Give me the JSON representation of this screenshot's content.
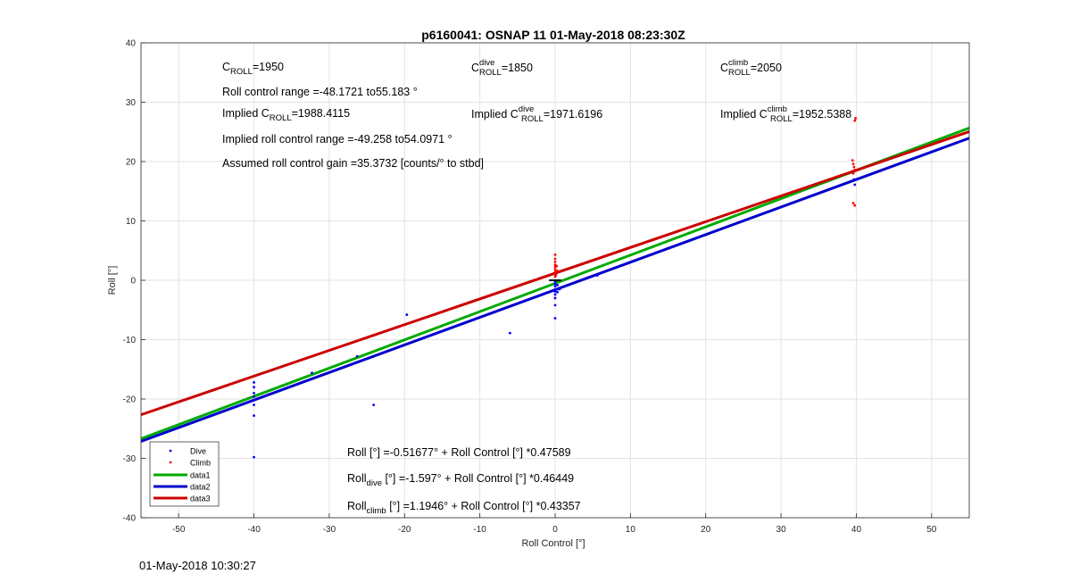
{
  "footer_timestamp": "01-May-2018 10:30:27",
  "chart_data": {
    "type": "scatter",
    "title": "p6160041: OSNAP 11 01-May-2018 08:23:30Z",
    "xlabel": "Roll Control [°]",
    "ylabel": "Roll [°]",
    "xlim": [
      -55,
      55
    ],
    "ylim": [
      -40,
      40
    ],
    "xticks": [
      -50,
      -40,
      -30,
      -20,
      -10,
      0,
      10,
      20,
      30,
      40,
      50
    ],
    "yticks": [
      -40,
      -30,
      -20,
      -10,
      0,
      10,
      20,
      30,
      40
    ],
    "grid": true,
    "legend_position": "bottom-left",
    "annotations": {
      "c_roll_base": "C",
      "c_roll_sub": "ROLL",
      "c_roll_value": "=1950",
      "c_roll_dive_sup": "dive",
      "c_roll_dive_sub": "ROLL",
      "c_roll_dive_value": "=1850",
      "c_roll_climb_sup": "climb",
      "c_roll_climb_sub": "ROLL",
      "c_roll_climb_value": "=2050",
      "roll_control_range": "Roll control range =-48.1721 to55.183 °",
      "implied_c_roll_prefix": "Implied C",
      "implied_c_roll_sub": "ROLL",
      "implied_c_roll_value": "=1988.4115",
      "implied_c_roll_dive_prefix": "Implied C",
      "implied_c_roll_dive_sup": "dive",
      "implied_c_roll_dive_sub": "ROLL",
      "implied_c_roll_dive_value": "=1971.6196",
      "implied_c_roll_climb_prefix": "Implied C",
      "implied_c_roll_climb_sup": "climb",
      "implied_c_roll_climb_sub": "ROLL",
      "implied_c_roll_climb_value": "=1952.5388",
      "implied_roll_control_range": "Implied roll control range =-49.258 to54.0971 °",
      "assumed_gain": "Assumed roll control gain =35.3732 [counts/° to stbd]",
      "fit_all": "Roll [°] =-0.51677° + Roll Control [°] *0.47589",
      "fit_dive_base": "Roll",
      "fit_dive_sub": "dive",
      "fit_dive_rest": " [°] =-1.597° + Roll Control [°] *0.46449",
      "fit_climb_base": "Roll",
      "fit_climb_sub": "climb",
      "fit_climb_rest": " [°] =1.1946° + Roll Control [°] *0.43357"
    },
    "series": [
      {
        "name": "Dive",
        "kind": "points",
        "color": "#0000ff",
        "points": [
          [
            -40,
            -17.2
          ],
          [
            -40,
            -18.0
          ],
          [
            -40,
            -19.0
          ],
          [
            -40,
            -19.6
          ],
          [
            -40,
            -20.2
          ],
          [
            -40,
            -21.0
          ],
          [
            -40,
            -22.8
          ],
          [
            -40,
            -29.8
          ],
          [
            -32.3,
            -15.6
          ],
          [
            -26.3,
            -12.8
          ],
          [
            -24.1,
            -21.0
          ],
          [
            -19.7,
            -5.8
          ],
          [
            -6.0,
            -8.9
          ],
          [
            0,
            -6.4
          ],
          [
            0,
            -4.2
          ],
          [
            0,
            -3.0
          ],
          [
            0,
            -2.4
          ],
          [
            0,
            -1.9
          ],
          [
            0,
            -1.5
          ],
          [
            0,
            -1.0
          ],
          [
            0,
            -0.6
          ],
          [
            0,
            -0.2
          ],
          [
            0.3,
            -2.0
          ],
          [
            0.6,
            -1.5
          ],
          [
            0.3,
            -0.8
          ],
          [
            5.6,
            0.8
          ],
          [
            39.7,
            17.0
          ],
          [
            39.8,
            16.1
          ]
        ]
      },
      {
        "name": "Climb",
        "kind": "points",
        "color": "#ff0000",
        "points": [
          [
            0,
            4.3
          ],
          [
            0,
            3.6
          ],
          [
            0,
            3.1
          ],
          [
            0,
            2.6
          ],
          [
            0,
            2.2
          ],
          [
            0,
            1.8
          ],
          [
            0,
            1.4
          ],
          [
            0,
            1.0
          ],
          [
            0,
            0.6
          ],
          [
            0.2,
            2.4
          ],
          [
            0.3,
            1.6
          ],
          [
            0.1,
            0.9
          ],
          [
            39.5,
            20.2
          ],
          [
            39.6,
            19.6
          ],
          [
            39.7,
            19.1
          ],
          [
            39.8,
            18.6
          ],
          [
            39.6,
            18.0
          ],
          [
            39.9,
            27.3
          ],
          [
            39.8,
            26.9
          ],
          [
            39.6,
            13.0
          ],
          [
            39.8,
            12.6
          ]
        ]
      },
      {
        "name": "data1",
        "kind": "line",
        "color": "#00aa00",
        "intercept": -0.51677,
        "slope": 0.47589
      },
      {
        "name": "data2",
        "kind": "line",
        "color": "#0000cc",
        "intercept": -1.597,
        "slope": 0.46449
      },
      {
        "name": "data3",
        "kind": "line",
        "color": "#cc0000",
        "intercept": 1.1946,
        "slope": 0.43357
      }
    ]
  }
}
